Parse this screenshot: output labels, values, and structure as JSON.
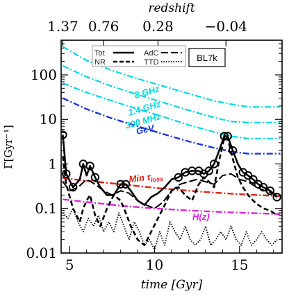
{
  "chart_data": {
    "type": "line",
    "xlabel": "time [Gyr]",
    "ylabel": "Γ[Gyr⁻¹]",
    "top_axis_label": "redshift",
    "xlim": [
      4.5,
      17.5
    ],
    "ylim": [
      0.01,
      600
    ],
    "y_scale": "log",
    "x_ticks": [
      "5",
      "10",
      "15"
    ],
    "x_tick_values": [
      5,
      10,
      15
    ],
    "y_ticks": [
      "0.01",
      "0.1",
      "1",
      "10",
      "100"
    ],
    "y_tick_values": [
      0.01,
      0.1,
      1,
      10,
      100
    ],
    "top_ticks": [
      "1.37",
      "0.76",
      "0.28",
      "−0.04"
    ],
    "top_tick_times": [
      4.6,
      7.0,
      10.2,
      14.2
    ],
    "box_label": "BL7k",
    "legend": {
      "tot": "Tot",
      "adc": "AdC",
      "nr": "NR",
      "ttd": "TTD"
    },
    "annotations": {
      "ghz8": "8 GHz",
      "ghz14": "1.4 GHz",
      "mhz300": "300 MHz",
      "gev": "GeV",
      "min_tau": "Min τ",
      "min_tau_sub": "loss",
      "hz": "H(z)"
    },
    "colors": {
      "ghz": "#00d8e0",
      "gev": "#1a36d8",
      "min_tau": "#e02010",
      "hz": "#e020e0",
      "data": "#000000"
    },
    "series": [
      {
        "key": "ghz8",
        "x": [
          4.6,
          6.0,
          7.5,
          9.0,
          10.5,
          12.0,
          13.5,
          14.5,
          15.5,
          17.4
        ],
        "values": [
          430,
          210,
          125,
          82,
          56,
          38,
          26,
          22,
          19,
          19
        ]
      },
      {
        "key": "ghz14",
        "x": [
          4.6,
          6.0,
          7.5,
          9.0,
          10.5,
          12.0,
          13.5,
          14.5,
          15.5,
          17.4
        ],
        "values": [
          160,
          90,
          55,
          36,
          24,
          16,
          11,
          9,
          8.5,
          8.5
        ]
      },
      {
        "key": "mhz300",
        "x": [
          4.6,
          6.0,
          7.5,
          9.0,
          10.5,
          12.0,
          13.5,
          14.5,
          15.5,
          17.4
        ],
        "values": [
          65,
          40,
          26,
          17,
          11.5,
          7.5,
          5.2,
          4.2,
          3.7,
          3.7
        ]
      },
      {
        "key": "gev",
        "x": [
          4.6,
          6.0,
          7.5,
          9.0,
          10.5,
          12.0,
          13.5,
          14.5,
          15.5,
          17.4
        ],
        "values": [
          30,
          17,
          10.5,
          7,
          4.7,
          3.2,
          2.3,
          1.9,
          1.7,
          1.7
        ]
      },
      {
        "key": "min_tau",
        "x": [
          4.6,
          6.0,
          8.0,
          10.0,
          12.0,
          14.0,
          16.0,
          17.4
        ],
        "values": [
          0.48,
          0.42,
          0.35,
          0.29,
          0.25,
          0.22,
          0.2,
          0.19
        ]
      },
      {
        "key": "hz",
        "x": [
          4.6,
          6.0,
          8.0,
          10.0,
          12.0,
          14.0,
          16.0,
          17.4
        ],
        "values": [
          0.16,
          0.14,
          0.115,
          0.1,
          0.09,
          0.083,
          0.078,
          0.075
        ]
      },
      {
        "key": "tot",
        "name": "Tot",
        "x": [
          4.6,
          4.8,
          5.2,
          5.6,
          5.8,
          6.0,
          6.2,
          6.5,
          6.8,
          7.2,
          7.6,
          8.0,
          8.3,
          8.6,
          9.0,
          9.4,
          9.8,
          10.2,
          10.6,
          11.0,
          11.4,
          11.8,
          12.2,
          12.6,
          12.9,
          13.2,
          13.5,
          13.8,
          14.1,
          14.3,
          14.6,
          14.9,
          15.2,
          15.5,
          15.8,
          16.1,
          16.4,
          16.8,
          17.2
        ],
        "values": [
          4.5,
          0.6,
          0.3,
          0.45,
          1.0,
          0.55,
          0.9,
          0.5,
          0.3,
          0.2,
          0.2,
          0.35,
          0.35,
          0.25,
          0.15,
          0.12,
          0.18,
          0.22,
          0.3,
          0.45,
          0.5,
          0.65,
          0.7,
          0.7,
          0.6,
          0.7,
          1.0,
          2.0,
          4.2,
          4.2,
          2.0,
          1.0,
          0.65,
          0.55,
          0.45,
          0.35,
          0.3,
          0.25,
          0.18
        ]
      },
      {
        "key": "nr",
        "name": "NR",
        "x": [
          4.6,
          4.8,
          5.2,
          5.6,
          5.8,
          6.0,
          6.2,
          6.5,
          6.8,
          7.2,
          7.6,
          8.0,
          8.3,
          8.6,
          9.0,
          9.4,
          9.8,
          10.2,
          10.6,
          11.0,
          11.4,
          11.8,
          12.2,
          12.6,
          12.9,
          13.2,
          13.5,
          13.8,
          14.1,
          14.3,
          14.6,
          14.9,
          15.2,
          15.5,
          15.8,
          16.1,
          16.4,
          16.8,
          17.2
        ],
        "values": [
          1.5,
          0.35,
          0.1,
          0.05,
          0.1,
          0.15,
          0.2,
          0.07,
          0.04,
          0.1,
          0.2,
          0.15,
          0.08,
          0.04,
          0.02,
          0.015,
          0.03,
          0.06,
          0.12,
          0.25,
          0.3,
          0.2,
          0.15,
          0.35,
          0.5,
          0.4,
          0.3,
          1.2,
          3.8,
          3.8,
          1.3,
          0.5,
          0.3,
          0.2,
          0.15,
          0.12,
          0.1,
          0.09,
          0.07
        ]
      },
      {
        "key": "adc",
        "name": "AdC",
        "x": [
          4.6,
          5.0,
          5.5,
          6.0,
          6.5,
          7.0,
          7.5,
          8.0,
          8.5,
          9.0,
          9.5,
          10.0,
          10.5,
          11.0,
          11.5,
          12.0,
          12.5,
          13.0,
          13.5,
          14.0,
          14.5,
          15.0,
          15.5,
          16.0,
          16.5,
          17.0,
          17.4
        ],
        "values": [
          0.4,
          0.25,
          0.3,
          0.45,
          0.35,
          0.25,
          0.2,
          0.25,
          0.22,
          0.15,
          0.12,
          0.1,
          0.14,
          0.25,
          0.35,
          0.4,
          0.45,
          0.4,
          0.35,
          0.55,
          0.6,
          0.45,
          0.4,
          0.3,
          0.25,
          0.22,
          0.2
        ]
      },
      {
        "key": "ttd",
        "name": "TTD",
        "x": [
          4.6,
          4.9,
          5.2,
          5.5,
          5.8,
          6.1,
          6.4,
          6.7,
          7.0,
          7.3,
          7.6,
          7.9,
          8.2,
          8.5,
          8.8,
          9.1,
          9.4,
          9.7,
          10.0,
          10.3,
          10.6,
          10.9,
          11.2,
          11.5,
          11.8,
          12.1,
          12.4,
          12.7,
          13.0,
          13.3,
          13.6,
          13.9,
          14.2,
          14.5,
          14.8,
          15.1,
          15.4,
          15.7,
          16.0,
          16.3,
          16.6,
          16.9,
          17.2
        ],
        "values": [
          0.08,
          0.06,
          0.1,
          0.05,
          0.03,
          0.06,
          0.04,
          0.07,
          0.03,
          0.05,
          0.03,
          0.08,
          0.04,
          0.02,
          0.05,
          0.03,
          0.015,
          0.02,
          0.012,
          0.03,
          0.015,
          0.05,
          0.03,
          0.02,
          0.04,
          0.02,
          0.015,
          0.02,
          0.04,
          0.015,
          0.02,
          0.03,
          0.02,
          0.04,
          0.02,
          0.015,
          0.03,
          0.015,
          0.02,
          0.03,
          0.02,
          0.015,
          0.02
        ]
      }
    ],
    "marker_series": "tot",
    "marker_x": [
      4.6,
      4.8,
      5.2,
      5.8,
      6.2,
      6.5,
      8.0,
      8.3,
      11.4,
      11.8,
      12.2,
      12.6,
      12.9,
      13.2,
      13.5,
      14.1,
      14.3,
      14.6,
      15.2,
      15.5,
      15.8,
      16.1,
      16.4,
      16.8,
      17.2
    ]
  }
}
